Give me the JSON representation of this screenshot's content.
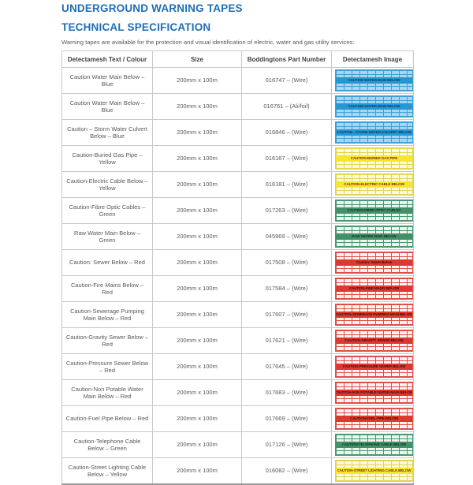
{
  "page": {
    "title": "UNDERGROUND WARNING TAPES",
    "subtitle": "TECHNICAL SPECIFICATION",
    "intro": "Warning tapes are available for the protection and visual identification of electric, water and gas utility services:"
  },
  "accent_color": "#1e6db6",
  "table": {
    "headers": [
      "Detectamesh Text / Colour",
      "Size",
      "Boddingtons Part Number",
      "Detectamesh Image"
    ],
    "rows": [
      {
        "text_colour": "Caution Water Main Below – Blue",
        "size": "200mm x 100m",
        "part_number": "016747 – (Wire)",
        "tape": {
          "label": "CAUTION WATER MAIN BELOW",
          "style": "blue"
        }
      },
      {
        "text_colour": "Caution Water Main Below – Blue",
        "size": "200mm x 100m",
        "part_number": "016761 – (Ali/foil)",
        "tape": {
          "label": "CAUTION WATER MAIN BELOW",
          "style": "blue"
        }
      },
      {
        "text_colour": "Caution – Storm Water Culvert Below – Blue",
        "size": "200mm x 100m",
        "part_number": "016846 – (Wire)",
        "tape": {
          "label": "CAUTION - STORM WATER CULVERT BELOW",
          "style": "blue"
        }
      },
      {
        "text_colour": "Caution-Buried Gas Pipe – Yellow",
        "size": "200mm x 100m",
        "part_number": "016167 – (Wire)",
        "tape": {
          "label": "CAUTION-BURIED GAS PIPE",
          "style": "yellow"
        }
      },
      {
        "text_colour": "Caution-Electric Cable Below – Yellow",
        "size": "200mm x 100m",
        "part_number": "016181 – (Wire)",
        "tape": {
          "label": "CAUTION-ELECTRIC CABLE BELOW",
          "style": "yellow"
        }
      },
      {
        "text_colour": "Caution-Fibre Optic Cables – Green",
        "size": "200mm x 100m",
        "part_number": "017263 – (Wire)",
        "tape": {
          "label": "CAUTION-FIBRE OPTIC CABLES",
          "style": "green"
        }
      },
      {
        "text_colour": "Raw Water Main Below – Green",
        "size": "200mm x 100m",
        "part_number": "045969 – (Wire)",
        "tape": {
          "label": "RAW WATER MAIN BELOW",
          "style": "green"
        }
      },
      {
        "text_colour": "Caution: Sewer Below – Red",
        "size": "200mm x 100m",
        "part_number": "017508 – (Wire)",
        "tape": {
          "label": "Caution: Sewer Below",
          "style": "red"
        }
      },
      {
        "text_colour": "Caution-Fire Mains Below – Red",
        "size": "200mm x 100m",
        "part_number": "017584 – (Wire)",
        "tape": {
          "label": "CAUTION-FIRE MAINS BELOW",
          "style": "red"
        }
      },
      {
        "text_colour": "Caution-Sewerage Pumping Main Below – Red",
        "size": "200mm x 100m",
        "part_number": "017607 – (Wire)",
        "tape": {
          "label": "CAUTION-SEWERAGE PUMPING MAIN BELOW",
          "style": "red"
        }
      },
      {
        "text_colour": "Caution-Gravity Sewer Below – Red",
        "size": "200mm x 100m",
        "part_number": "017621 – (Wire)",
        "tape": {
          "label": "CAUTION-GRAVITY SEWER BELOW",
          "style": "red"
        }
      },
      {
        "text_colour": "Caution-Pressure Sewer Below – Red",
        "size": "200mm x 100m",
        "part_number": "017645 – (Wire)",
        "tape": {
          "label": "CAUTION-PRESSURE SEWER BELOW",
          "style": "red"
        }
      },
      {
        "text_colour": "Caution-Non Potable Water Main Below – Red",
        "size": "200mm x 100m",
        "part_number": "017683 – (Wire)",
        "tape": {
          "label": "CAUTION-NON POTABLE WATER MAIN BELOW",
          "style": "red"
        }
      },
      {
        "text_colour": "Caution-Fuel Pipe Below – Red",
        "size": "200mm x 100m",
        "part_number": "017669 – (Wire)",
        "tape": {
          "label": "CAUTION-FUEL PIPE BELOW",
          "style": "red"
        }
      },
      {
        "text_colour": "Caution-Telephone Cable Below – Green",
        "size": "200mm x 100m",
        "part_number": "017126 – (Wire)",
        "tape": {
          "label": "CAUTION-TELEPHONE CABLE BELOW",
          "style": "green"
        }
      },
      {
        "text_colour": "Caution-Street Lighting Cable Below – Yellow",
        "size": "200mm x 100m",
        "part_number": "016082 – (Wire)",
        "tape": {
          "label": "CAUTION-STREET LIGHTING CABLE BELOW",
          "style": "yellow"
        }
      }
    ]
  },
  "tape_styles": {
    "blue": {
      "bg": "#a9d5ed",
      "grid": "#3ea0d5",
      "band": "#2399d4",
      "text": "#0c3e6e"
    },
    "yellow": {
      "bg": "#fcf9dd",
      "grid": "#e3d34f",
      "band": "#f6e72e",
      "text": "#7c2a16"
    },
    "green": {
      "bg": "#ecf4ee",
      "grid": "#4b9670",
      "band": "#43916b",
      "text": "#11331f"
    },
    "red": {
      "bg": "#fdf3f2",
      "grid": "#dd4f47",
      "band": "#df382e",
      "text": "#3a100b"
    }
  }
}
